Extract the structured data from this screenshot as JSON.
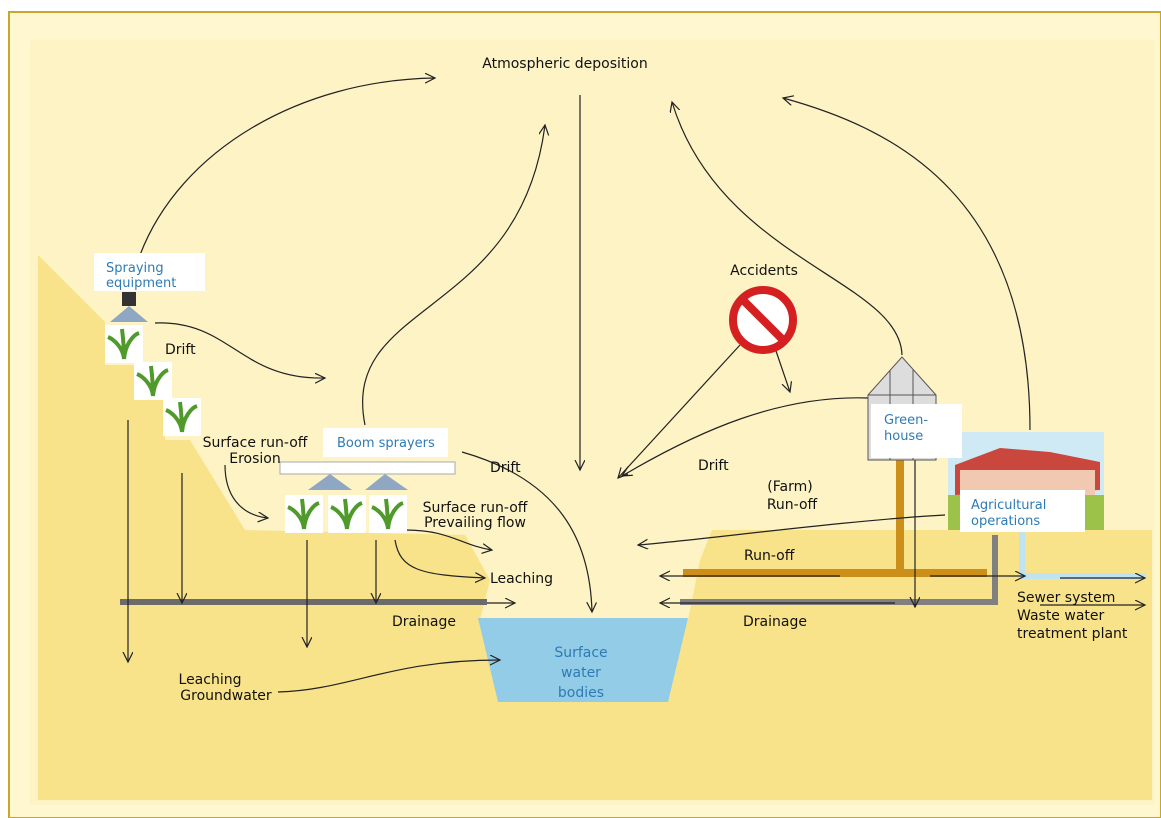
{
  "atmospheric_deposition": "Atmospheric  deposition",
  "spraying_equipment": [
    "Spraying",
    "equipment"
  ],
  "drift_left": "Drift",
  "surface_runoff_erosion": [
    "Surface run-off",
    "Erosion"
  ],
  "boom_sprayers": "Boom sprayers",
  "drift_middle": "Drift",
  "surface_runoff_prevailing": [
    "Surface run-off",
    "Prevailing flow"
  ],
  "leaching": "Leaching",
  "drainage_left": "Drainage",
  "leaching_groundwater": [
    "Leaching",
    "Groundwater"
  ],
  "surface_water_bodies": [
    "Surface",
    "water",
    "bodies"
  ],
  "accidents": "Accidents",
  "drift_right": "Drift",
  "farm_runoff": [
    "(Farm)",
    "Run-off"
  ],
  "greenhouse": [
    "Green-",
    "house"
  ],
  "agricultural_operations": [
    "Agricultural",
    "operations"
  ],
  "runoff_right": "Run-off",
  "drainage_right": "Drainage",
  "sewer_system": [
    "Sewer system",
    "Waste water",
    "treatment plant"
  ]
}
